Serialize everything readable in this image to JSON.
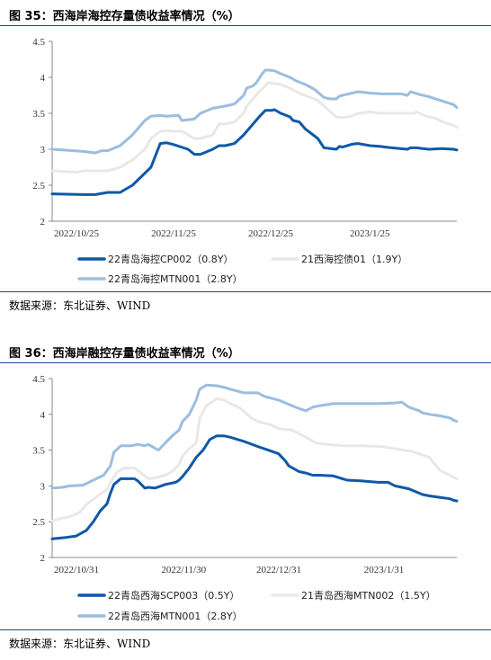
{
  "source_label": "数据来源：东北证券、WIND",
  "chart_data": [
    {
      "type": "line",
      "title": "图 35：西海岸海控存量债收益率情况（%）",
      "ylim": [
        2,
        4.5
      ],
      "yticks": [
        "2",
        "2.5",
        "3",
        "3.5",
        "4",
        "4.5"
      ],
      "xticks": [
        "2022/10/25",
        "2022/11/25",
        "2022/12/25",
        "2023/1/25"
      ],
      "xrange": [
        0,
        131
      ],
      "legend_position": "bottom",
      "series": [
        {
          "name": "22青岛海控CP002（0.8Y）",
          "color": "#0f58a8",
          "width": 3,
          "x": [
            0,
            10,
            14,
            18,
            22,
            26,
            32,
            35,
            37,
            39,
            44,
            46,
            48,
            52,
            54,
            56,
            59,
            62,
            63,
            65,
            67,
            69,
            71,
            72,
            74,
            77,
            78,
            80,
            82,
            86,
            88,
            92,
            93,
            94,
            97,
            99,
            103,
            106,
            108,
            110,
            115,
            116,
            118,
            120,
            122,
            126,
            130,
            131
          ],
          "y": [
            2.38,
            2.37,
            2.37,
            2.4,
            2.4,
            2.5,
            2.75,
            3.08,
            3.09,
            3.07,
            3.0,
            2.93,
            2.93,
            3.0,
            3.05,
            3.05,
            3.08,
            3.2,
            3.25,
            3.35,
            3.45,
            3.54,
            3.54,
            3.55,
            3.5,
            3.45,
            3.4,
            3.38,
            3.28,
            3.15,
            3.02,
            3.0,
            3.04,
            3.03,
            3.07,
            3.08,
            3.05,
            3.04,
            3.03,
            3.02,
            3.0,
            3.02,
            3.02,
            3.01,
            3.0,
            3.01,
            3.0,
            2.99
          ]
        },
        {
          "name": "21西海控债01（1.9Y）",
          "color": "#e8e8e4",
          "width": 3,
          "x": [
            0,
            8,
            10,
            18,
            22,
            26,
            30,
            32,
            35,
            37,
            39,
            42,
            46,
            48,
            52,
            54,
            56,
            59,
            62,
            63,
            66,
            67,
            69,
            70,
            71,
            74,
            77,
            80,
            86,
            88,
            92,
            93,
            96,
            99,
            103,
            106,
            110,
            115,
            117,
            118,
            121,
            124,
            127,
            130,
            131
          ],
          "y": [
            2.7,
            2.68,
            2.7,
            2.7,
            2.75,
            2.85,
            3.0,
            3.15,
            3.25,
            3.26,
            3.25,
            3.25,
            3.15,
            3.15,
            3.2,
            3.35,
            3.35,
            3.38,
            3.5,
            3.6,
            3.75,
            3.8,
            3.88,
            3.93,
            3.92,
            3.9,
            3.85,
            3.78,
            3.68,
            3.6,
            3.45,
            3.44,
            3.45,
            3.5,
            3.52,
            3.5,
            3.5,
            3.5,
            3.5,
            3.52,
            3.46,
            3.43,
            3.37,
            3.33,
            3.3
          ]
        },
        {
          "name": "22青岛海控MTN001（2.8Y）",
          "color": "#9bbde0",
          "width": 3,
          "x": [
            0,
            10,
            14,
            16,
            18,
            22,
            26,
            30,
            32,
            35,
            37,
            41,
            42,
            46,
            48,
            52,
            56,
            59,
            62,
            63,
            65,
            66,
            68,
            69,
            70,
            72,
            74,
            77,
            79,
            82,
            85,
            88,
            90,
            92,
            93,
            96,
            99,
            103,
            107,
            113,
            115,
            116,
            119,
            122,
            127,
            130,
            131
          ],
          "y": [
            3.0,
            2.97,
            2.95,
            2.98,
            2.98,
            3.05,
            3.2,
            3.4,
            3.46,
            3.47,
            3.46,
            3.47,
            3.4,
            3.42,
            3.5,
            3.57,
            3.6,
            3.63,
            3.75,
            3.85,
            3.88,
            3.92,
            4.05,
            4.1,
            4.1,
            4.09,
            4.05,
            4.0,
            3.95,
            3.9,
            3.83,
            3.72,
            3.7,
            3.7,
            3.74,
            3.77,
            3.8,
            3.78,
            3.77,
            3.77,
            3.75,
            3.8,
            3.76,
            3.73,
            3.66,
            3.62,
            3.58
          ]
        }
      ]
    },
    {
      "type": "line",
      "title": "图 36：西海岸融控存量债收益率情况（%）",
      "ylim": [
        2,
        4.5
      ],
      "yticks": [
        "2",
        "2.5",
        "3",
        "3.5",
        "4",
        "4.5"
      ],
      "xticks": [
        "2022/10/31",
        "2022/11/30",
        "2022/12/31",
        "2023/1/31"
      ],
      "xrange": [
        0,
        118
      ],
      "legend_position": "bottom",
      "series": [
        {
          "name": "22青岛西海SCP003（0.5Y）",
          "color": "#0f58a8",
          "width": 3,
          "x": [
            0,
            2,
            4,
            7,
            10,
            12,
            14,
            16,
            17,
            18,
            20,
            24,
            25,
            27,
            28,
            30,
            33,
            36,
            37,
            38,
            40,
            42,
            44,
            46,
            48,
            50,
            52,
            56,
            60,
            63,
            66,
            68,
            69,
            72,
            74,
            76,
            78,
            82,
            86,
            90,
            95,
            98,
            100,
            104,
            108,
            110,
            113,
            116,
            117,
            118
          ],
          "y": [
            2.26,
            2.27,
            2.28,
            2.3,
            2.38,
            2.5,
            2.65,
            2.75,
            2.9,
            3.02,
            3.1,
            3.1,
            3.07,
            2.97,
            2.98,
            2.97,
            3.02,
            3.05,
            3.08,
            3.13,
            3.25,
            3.4,
            3.5,
            3.65,
            3.7,
            3.7,
            3.68,
            3.62,
            3.55,
            3.5,
            3.45,
            3.35,
            3.28,
            3.2,
            3.18,
            3.15,
            3.15,
            3.14,
            3.08,
            3.07,
            3.05,
            3.05,
            3.0,
            2.96,
            2.88,
            2.86,
            2.84,
            2.82,
            2.8,
            2.79
          ]
        },
        {
          "name": "21青岛西海MTN002（1.5Y）",
          "color": "#e8e8e4",
          "width": 3,
          "x": [
            0,
            3,
            5,
            8,
            10,
            13,
            16,
            17,
            19,
            21,
            24,
            26,
            28,
            30,
            33,
            35,
            37,
            38,
            40,
            42,
            43,
            45,
            48,
            50,
            52,
            55,
            58,
            60,
            64,
            66,
            70,
            74,
            77,
            80,
            85,
            90,
            96,
            100,
            105,
            110,
            113,
            116,
            117,
            118
          ],
          "y": [
            2.51,
            2.55,
            2.57,
            2.63,
            2.74,
            2.85,
            2.95,
            3.05,
            3.2,
            3.25,
            3.25,
            3.18,
            3.1,
            3.11,
            3.15,
            3.2,
            3.3,
            3.42,
            3.52,
            3.6,
            3.95,
            4.12,
            4.22,
            4.2,
            4.15,
            4.08,
            3.95,
            3.9,
            3.85,
            3.8,
            3.78,
            3.68,
            3.6,
            3.58,
            3.56,
            3.56,
            3.55,
            3.52,
            3.48,
            3.4,
            3.22,
            3.15,
            3.12,
            3.1
          ]
        },
        {
          "name": "22青岛西海MTN001（2.8Y）",
          "color": "#9bbde0",
          "width": 3,
          "x": [
            0,
            3,
            5,
            9,
            12,
            15,
            17,
            18,
            20,
            23,
            25,
            27,
            28,
            31,
            33,
            35,
            37,
            38,
            40,
            42,
            43,
            45,
            48,
            50,
            52,
            56,
            60,
            62,
            66,
            70,
            72,
            74,
            76,
            78,
            82,
            86,
            90,
            95,
            100,
            102,
            104,
            107,
            108,
            110,
            113,
            116,
            117,
            118
          ],
          "y": [
            2.97,
            2.98,
            3.0,
            3.01,
            3.08,
            3.15,
            3.28,
            3.47,
            3.56,
            3.56,
            3.58,
            3.56,
            3.58,
            3.5,
            3.6,
            3.7,
            3.78,
            3.9,
            4.0,
            4.2,
            4.35,
            4.41,
            4.4,
            4.38,
            4.35,
            4.3,
            4.3,
            4.25,
            4.2,
            4.12,
            4.08,
            4.05,
            4.1,
            4.12,
            4.15,
            4.15,
            4.15,
            4.15,
            4.16,
            4.17,
            4.1,
            4.05,
            4.02,
            4.0,
            3.98,
            3.95,
            3.92,
            3.9
          ]
        }
      ]
    }
  ]
}
